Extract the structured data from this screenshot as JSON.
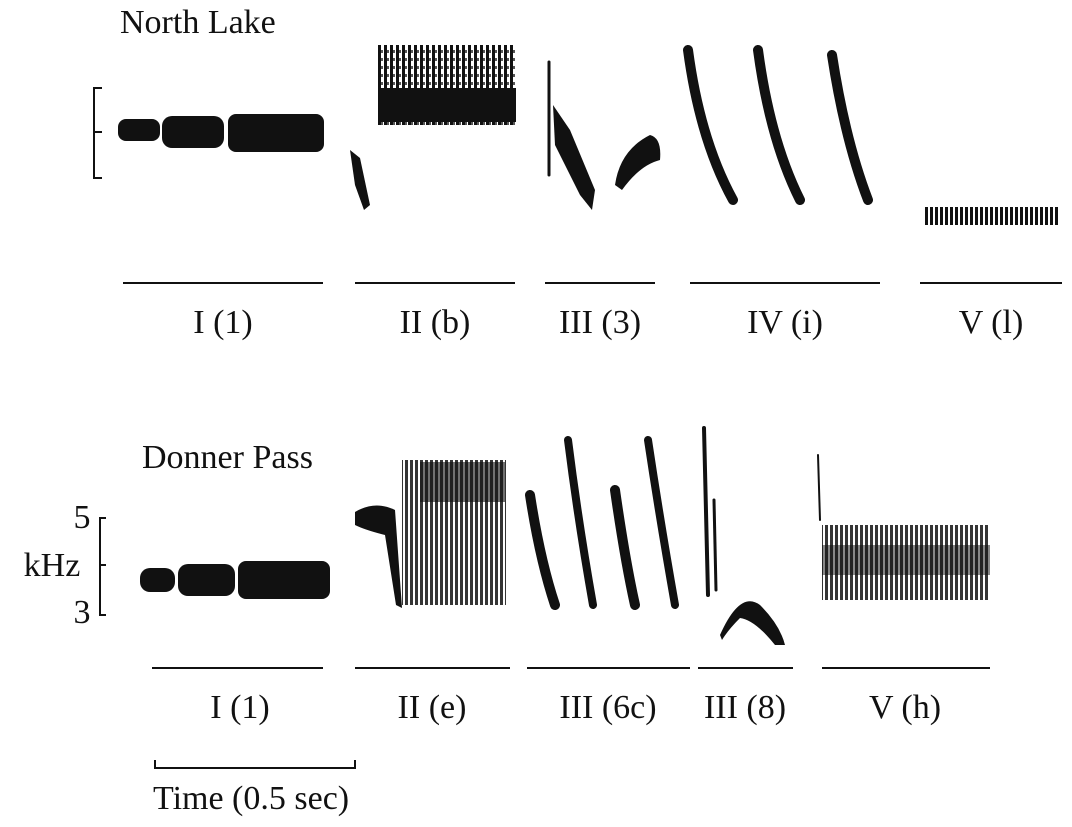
{
  "panels": [
    {
      "title": "North Lake",
      "syllables": [
        {
          "label": "I (1)"
        },
        {
          "label": "II (b)"
        },
        {
          "label": "III (3)"
        },
        {
          "label": "IV (i)"
        },
        {
          "label": "V (l)"
        }
      ]
    },
    {
      "title": "Donner Pass",
      "syllables": [
        {
          "label": "I (1)"
        },
        {
          "label": "II (e)"
        },
        {
          "label": "III (6c)"
        },
        {
          "label": "III (8)"
        },
        {
          "label": "V (h)"
        }
      ]
    }
  ],
  "frequency_axis": {
    "label": "kHz",
    "ticks": [
      "5",
      "3"
    ]
  },
  "time_scale": {
    "label": "Time (0.5 sec)"
  }
}
